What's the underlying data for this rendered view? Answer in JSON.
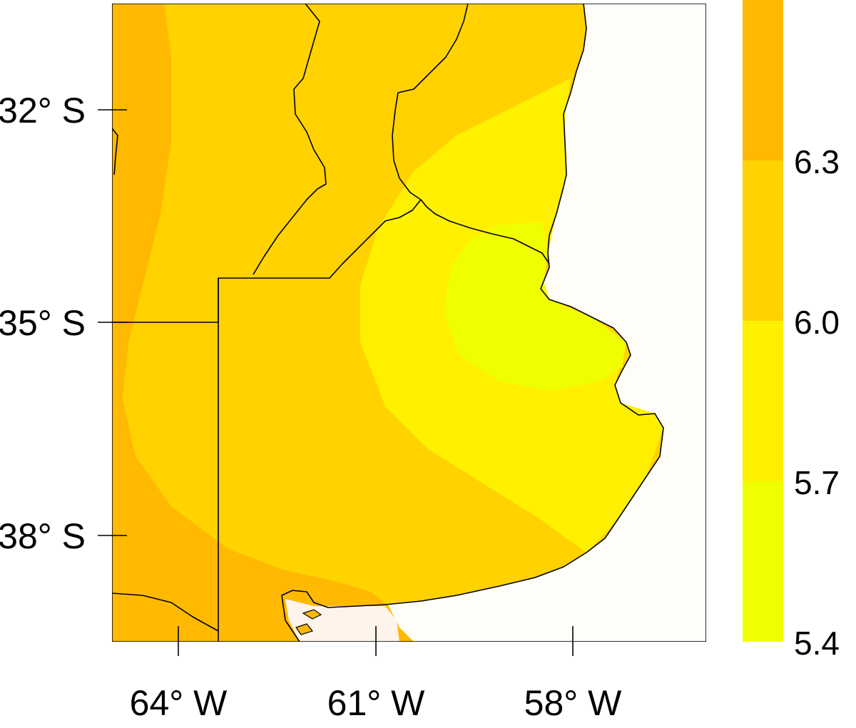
{
  "map": {
    "lat_ticks": [
      {
        "label": "32° S",
        "value": -32
      },
      {
        "label": "35° S",
        "value": -35
      },
      {
        "label": "38° S",
        "value": -38
      }
    ],
    "lon_ticks": [
      {
        "label": "64° W",
        "value": -64
      },
      {
        "label": "61° W",
        "value": -61
      },
      {
        "label": "58° W",
        "value": -58
      }
    ],
    "extent": {
      "lon_min": -65,
      "lon_max": -56,
      "lat_min": -39.5,
      "lat_max": -30.5
    }
  },
  "legend": {
    "type": "colorbar",
    "bands": [
      {
        "from": 6.3,
        "to": 6.6,
        "color": "#FFB900"
      },
      {
        "from": 6.0,
        "to": 6.3,
        "color": "#FFD200"
      },
      {
        "from": 5.7,
        "to": 6.0,
        "color": "#FFF000"
      },
      {
        "from": 5.4,
        "to": 5.7,
        "color": "#F0FF00"
      }
    ],
    "tick_labels": [
      "6.3",
      "6.0",
      "5.7",
      "5.4"
    ]
  },
  "colors": {
    "ocean": "#FFFDF8",
    "band_high": "#FFB900",
    "band_mid": "#FFD200",
    "band_low": "#FFF000",
    "band_min": "#F0FF00"
  }
}
